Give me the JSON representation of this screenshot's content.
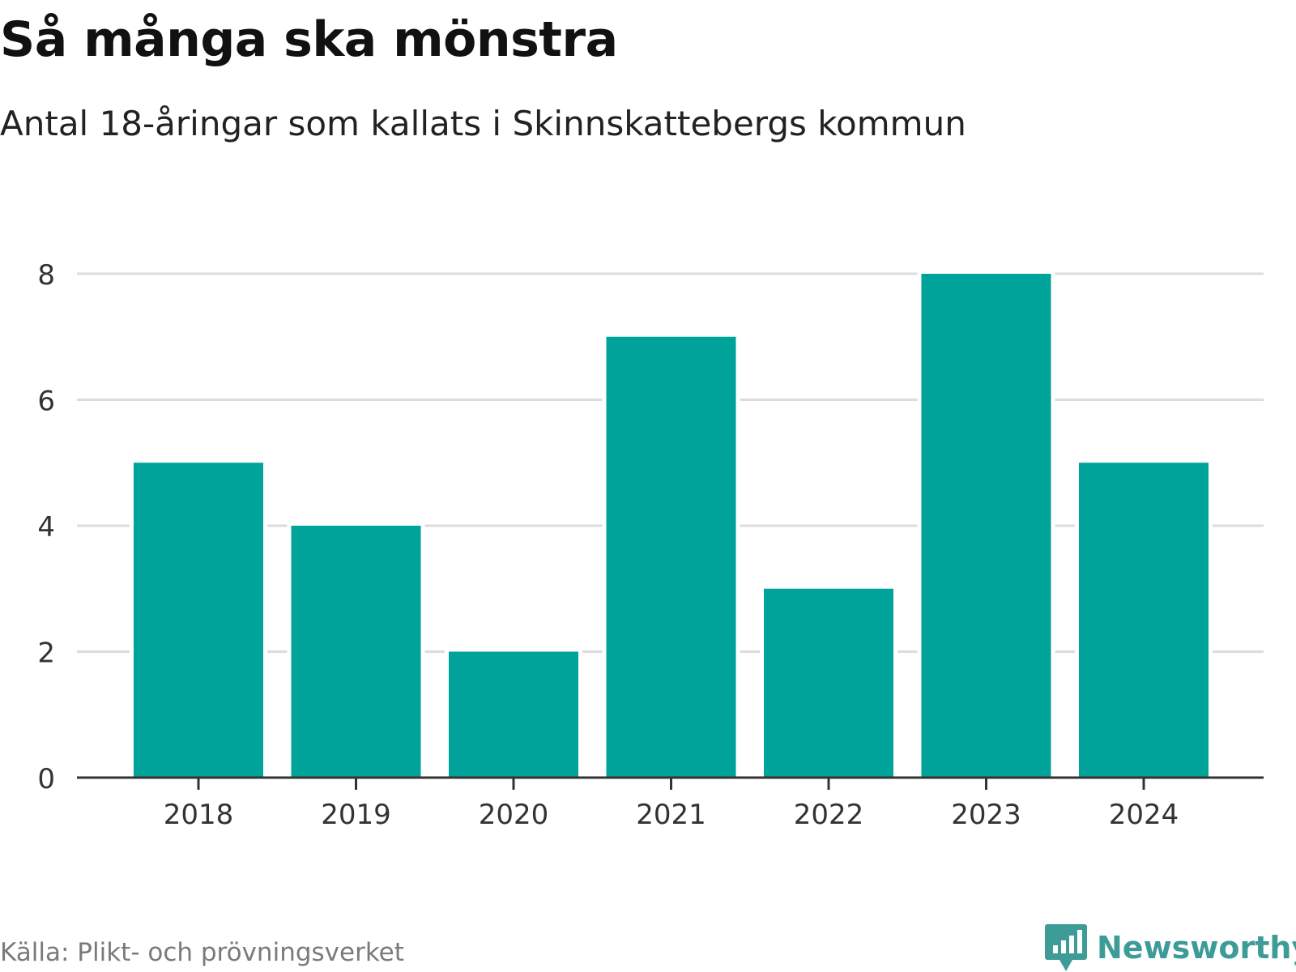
{
  "title": "Så många ska mönstra",
  "subtitle": "Antal 18-åringar som kallats i Skinnskattebergs kommun",
  "source": "Källa: Plikt- och prövningsverket",
  "brand": {
    "name": "Newsworthy",
    "color": "#3d9b98"
  },
  "colors": {
    "bar": "#00a39a",
    "grid": "#dcdcdc",
    "axis": "#333333",
    "tick_text": "#333333"
  },
  "chart_data": {
    "type": "bar",
    "categories": [
      "2018",
      "2019",
      "2020",
      "2021",
      "2022",
      "2023",
      "2024"
    ],
    "values": [
      5,
      4,
      2,
      7,
      3,
      8,
      5
    ],
    "title": "Så många ska mönstra",
    "subtitle": "Antal 18-åringar som kallats i Skinnskattebergs kommun",
    "xlabel": "",
    "ylabel": "",
    "ylim": [
      0,
      8
    ],
    "yticks": [
      0,
      2,
      4,
      6,
      8
    ],
    "grid": true,
    "legend": "none"
  }
}
